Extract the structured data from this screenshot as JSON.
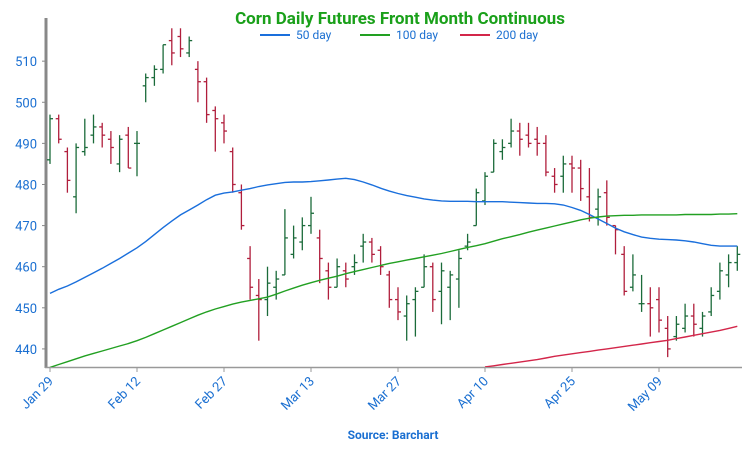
{
  "chart_data": {
    "type": "ohlc",
    "title": "Corn Daily Futures Front Month Continuous",
    "source": "Source: Barchart",
    "categories": [
      "Jan 29",
      null,
      null,
      null,
      null,
      null,
      null,
      null,
      null,
      null,
      "Feb 12",
      null,
      null,
      null,
      null,
      null,
      null,
      null,
      null,
      null,
      "Feb 27",
      null,
      null,
      null,
      null,
      null,
      null,
      null,
      null,
      null,
      "Mar 13",
      null,
      null,
      null,
      null,
      null,
      null,
      null,
      null,
      null,
      "Mar 27",
      null,
      null,
      null,
      null,
      null,
      null,
      null,
      null,
      null,
      "Apr 10",
      null,
      null,
      null,
      null,
      null,
      null,
      null,
      null,
      null,
      "Apr 25",
      null,
      null,
      null,
      null,
      null,
      null,
      null,
      null,
      null,
      "May 09",
      null,
      null,
      null,
      null,
      null,
      null,
      null,
      null,
      null
    ],
    "open": [
      486,
      496,
      488,
      477,
      488,
      492,
      494,
      491,
      485,
      492,
      490,
      504,
      506,
      508,
      515,
      516,
      512,
      508,
      505,
      498,
      495,
      488,
      478,
      462,
      453,
      452,
      455,
      458,
      463,
      466,
      470,
      467,
      459,
      455,
      459,
      460,
      465,
      466,
      464,
      458,
      452,
      448,
      452,
      455,
      460,
      454,
      455,
      457,
      465,
      470,
      476,
      483,
      488,
      490,
      493,
      492,
      491,
      490,
      482,
      482,
      485,
      484,
      477,
      474,
      478,
      470,
      463,
      455,
      451,
      451,
      452,
      445,
      443,
      445,
      448,
      445,
      449,
      454,
      458,
      461
    ],
    "high": [
      497,
      497,
      489,
      490,
      496,
      497,
      495,
      493,
      492,
      494,
      493,
      507,
      509,
      514,
      518,
      518,
      516,
      510,
      506,
      499,
      497,
      489,
      480,
      465,
      457,
      460,
      459,
      474,
      470,
      472,
      477,
      469,
      461,
      462,
      461,
      463,
      468,
      467,
      465,
      459,
      455,
      453,
      455,
      463,
      461,
      461,
      459,
      464,
      468,
      479,
      483,
      491,
      491,
      496,
      495,
      495,
      494,
      492,
      484,
      487,
      487,
      486,
      484,
      479,
      481,
      470,
      465,
      463,
      458,
      455,
      455,
      448,
      448,
      451,
      451,
      449,
      455,
      461,
      463,
      465
    ],
    "low": [
      485,
      490,
      478,
      473,
      487,
      490,
      489,
      485,
      483,
      484,
      482,
      500,
      504,
      507,
      509,
      511,
      511,
      500,
      495,
      488,
      490,
      478,
      469,
      452,
      442,
      448,
      452,
      458,
      462,
      464,
      468,
      456,
      452,
      455,
      455,
      458,
      461,
      461,
      458,
      450,
      447,
      442,
      443,
      455,
      449,
      446,
      447,
      450,
      464,
      470,
      475,
      483,
      486,
      489,
      487,
      489,
      487,
      482,
      478,
      478,
      478,
      476,
      471,
      470,
      470,
      463,
      453,
      454,
      449,
      443,
      444,
      438,
      442,
      444,
      443,
      443,
      448,
      452,
      455,
      459
    ],
    "close": [
      496,
      491,
      481,
      489,
      489,
      494,
      492,
      489,
      491,
      484,
      490,
      506,
      508,
      514,
      512,
      513,
      515,
      505,
      497,
      496,
      493,
      480,
      470,
      455,
      452,
      456,
      457,
      467,
      467,
      470,
      473,
      462,
      455,
      460,
      457,
      461,
      466,
      463,
      460,
      452,
      449,
      451,
      454,
      460,
      452,
      459,
      458,
      462,
      466,
      478,
      482,
      490,
      489,
      493,
      491,
      490,
      490,
      483,
      480,
      485,
      484,
      479,
      472,
      477,
      472,
      469,
      454,
      458,
      451,
      450,
      447,
      440,
      446,
      448,
      446,
      448,
      453,
      459,
      461,
      463
    ],
    "up_color": "#1b6b3a",
    "down_color": "#b01e3c",
    "series": [
      {
        "name": "50 day",
        "color": "#1a6fdc",
        "values": [
          453.5,
          454.5,
          455.3,
          456.3,
          457.4,
          458.5,
          459.6,
          460.8,
          462,
          463.3,
          464.6,
          466.1,
          467.8,
          469.5,
          471.1,
          472.6,
          473.8,
          475,
          476.3,
          477.4,
          477.9,
          478.2,
          478.6,
          479,
          479.5,
          479.9,
          480.2,
          480.5,
          480.6,
          480.6,
          480.7,
          480.9,
          481.1,
          481.3,
          481.5,
          481.2,
          480.6,
          479.9,
          479.1,
          478.4,
          477.8,
          477.3,
          476.9,
          476.5,
          476.2,
          476,
          475.9,
          475.9,
          475.9,
          475.8,
          475.8,
          475.8,
          475.8,
          475.7,
          475.6,
          475.5,
          475.4,
          475.4,
          475.3,
          475,
          474.4,
          473.7,
          472.7,
          471.6,
          470.5,
          469.4,
          468.5,
          467.8,
          467.2,
          466.9,
          466.7,
          466.6,
          466.5,
          466.3,
          466,
          465.6,
          465.2,
          465,
          465,
          465
        ]
      },
      {
        "name": "100 day",
        "color": "#22a022",
        "values": [
          435.5,
          436.2,
          436.9,
          437.6,
          438.3,
          438.9,
          439.5,
          440.1,
          440.7,
          441.3,
          442,
          442.8,
          443.7,
          444.6,
          445.5,
          446.4,
          447.3,
          448.2,
          449,
          449.7,
          450.3,
          450.9,
          451.4,
          451.8,
          452.2,
          452.6,
          453.3,
          454.1,
          454.8,
          455.5,
          456.1,
          456.7,
          457.2,
          457.7,
          458.3,
          458.8,
          459.3,
          459.8,
          460.3,
          460.8,
          461.2,
          461.6,
          462,
          462.4,
          462.8,
          463.2,
          463.7,
          464.2,
          464.7,
          465.1,
          465.6,
          466.2,
          466.8,
          467.3,
          467.8,
          468.4,
          468.9,
          469.4,
          469.9,
          470.4,
          470.9,
          471.4,
          471.8,
          472.1,
          472.3,
          472.4,
          472.5,
          472.5,
          472.6,
          472.6,
          472.6,
          472.6,
          472.6,
          472.7,
          472.7,
          472.7,
          472.7,
          472.8,
          472.8,
          472.9
        ]
      },
      {
        "name": "200 day",
        "color": "#d3264a",
        "values": [
          null,
          null,
          null,
          null,
          null,
          null,
          null,
          null,
          null,
          null,
          null,
          null,
          null,
          null,
          null,
          null,
          null,
          null,
          null,
          null,
          null,
          null,
          null,
          null,
          null,
          null,
          null,
          null,
          null,
          null,
          null,
          null,
          null,
          null,
          null,
          null,
          null,
          null,
          null,
          null,
          null,
          null,
          null,
          null,
          null,
          null,
          null,
          null,
          null,
          null,
          435.6,
          435.9,
          436.2,
          436.5,
          436.8,
          437.1,
          437.4,
          437.8,
          438.2,
          438.5,
          438.8,
          439.1,
          439.4,
          439.7,
          440,
          440.3,
          440.6,
          440.9,
          441.2,
          441.5,
          441.8,
          442.1,
          442.5,
          442.9,
          443.3,
          443.7,
          444.1,
          444.5,
          445,
          445.5
        ]
      }
    ],
    "ylim": [
      435.6,
      520.5
    ],
    "yticks": [
      440,
      450,
      460,
      470,
      480,
      490,
      500,
      510
    ]
  }
}
